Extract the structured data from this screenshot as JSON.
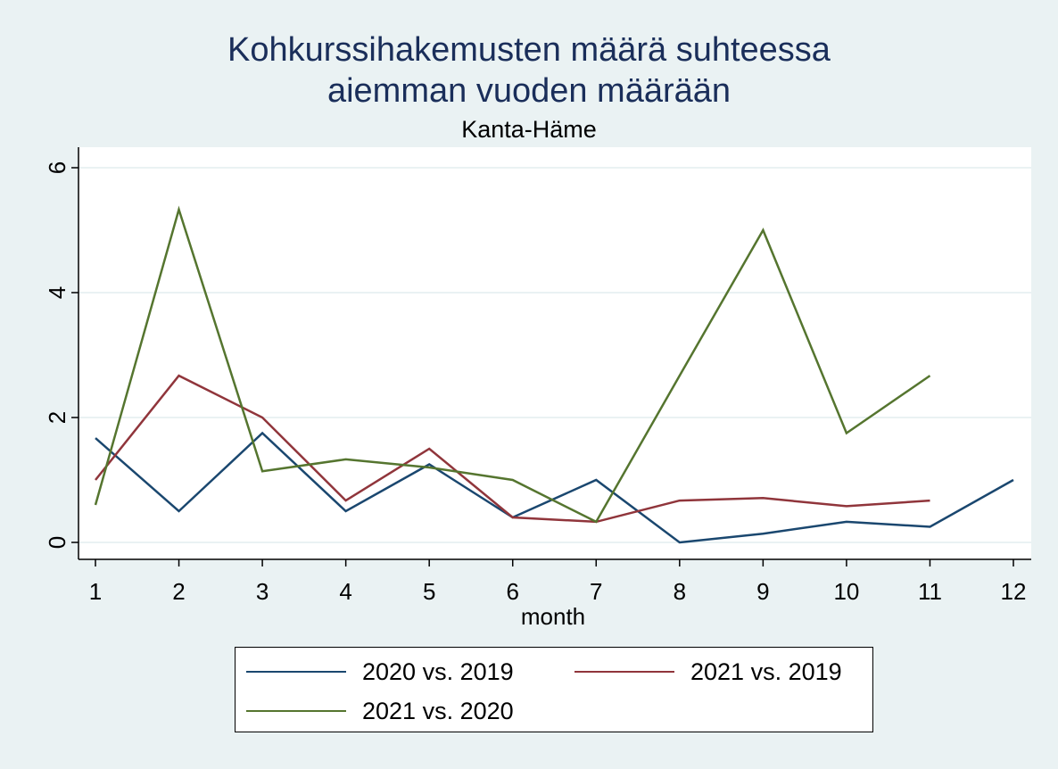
{
  "chart_data": {
    "type": "line",
    "title": [
      "Kohkurssihakemusten määrä suhteessa",
      "aiemman vuoden määrään"
    ],
    "subtitle": "Kanta-Häme",
    "xlabel": "month",
    "ylabel": "",
    "x": [
      1,
      2,
      3,
      4,
      5,
      6,
      7,
      8,
      9,
      10,
      11,
      12
    ],
    "xlim": [
      1,
      12
    ],
    "ylim": [
      0,
      6
    ],
    "yticks": [
      0,
      2,
      4,
      6
    ],
    "grid": true,
    "legend_position": "bottom",
    "series": [
      {
        "name": "2020 vs. 2019",
        "color": "#1a476f",
        "values": [
          1.67,
          0.5,
          1.75,
          0.5,
          1.25,
          0.4,
          1.0,
          0.0,
          0.14,
          0.33,
          0.25,
          1.0
        ]
      },
      {
        "name": "2021 vs. 2019",
        "color": "#90353b",
        "values": [
          1.0,
          2.67,
          2.0,
          0.67,
          1.5,
          0.4,
          0.33,
          0.67,
          0.71,
          0.58,
          0.67,
          null
        ]
      },
      {
        "name": "2021 vs. 2020",
        "color": "#55752f",
        "values": [
          0.6,
          5.33,
          1.14,
          1.33,
          1.2,
          1.0,
          0.33,
          2.67,
          5.0,
          1.75,
          2.67,
          null
        ]
      }
    ]
  }
}
